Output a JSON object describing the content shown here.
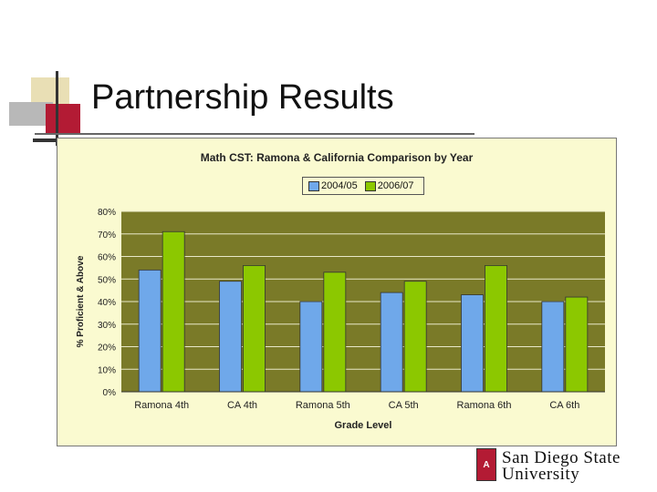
{
  "slide": {
    "title": "Partnership Results"
  },
  "logo": {
    "line1": "San Diego State",
    "line2": "University",
    "mark": "A"
  },
  "colors": {
    "series1": "#6fa8ea",
    "series2": "#8cc800",
    "plot_bg": "#7a7a28",
    "chart_bg": "#fafad0",
    "accent_red": "#b31b34"
  },
  "chart_data": {
    "type": "bar",
    "title": "Math CST: Ramona & California Comparison by Year",
    "xlabel": "Grade Level",
    "ylabel": "% Proficient & Above",
    "ylim": [
      0,
      80
    ],
    "yticks": [
      "0%",
      "10%",
      "20%",
      "30%",
      "40%",
      "50%",
      "60%",
      "70%",
      "80%"
    ],
    "categories": [
      "Ramona 4th",
      "CA 4th",
      "Ramona 5th",
      "CA 5th",
      "Ramona 6th",
      "CA 6th"
    ],
    "series": [
      {
        "name": "2004/05",
        "values": [
          54,
          49,
          40,
          44,
          43,
          40
        ]
      },
      {
        "name": "2006/07",
        "values": [
          71,
          56,
          53,
          49,
          56,
          42
        ]
      }
    ],
    "legend_position": "top-center",
    "grid": true
  }
}
